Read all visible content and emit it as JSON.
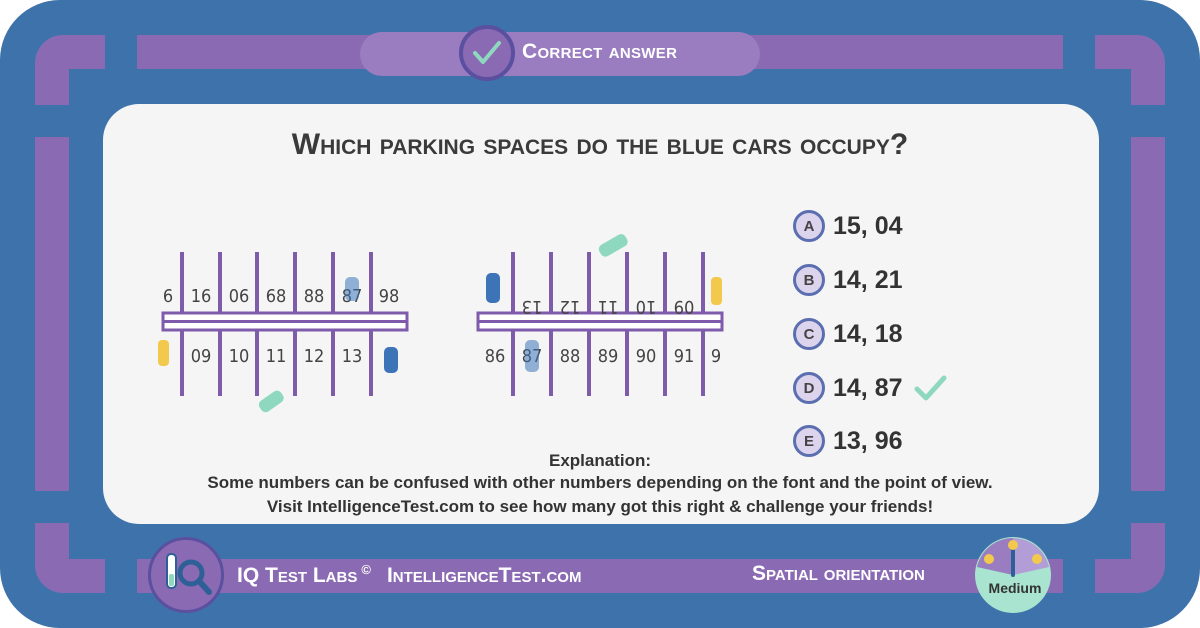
{
  "header": {
    "status_label": "Correct answer",
    "status_icon": "check-icon"
  },
  "question": "Which parking spaces do the blue cars occupy?",
  "puzzle": {
    "lot_1": {
      "top_numbers": [
        "6",
        "16",
        "06",
        "68",
        "88",
        "87",
        "98"
      ],
      "bottom_numbers": [
        "09",
        "10",
        "11",
        "12",
        "13"
      ]
    },
    "lot_2": {
      "top_numbers": [
        "13",
        "12",
        "11",
        "10",
        "09"
      ],
      "bottom_numbers": [
        "86",
        "87",
        "88",
        "89",
        "90",
        "91",
        "9"
      ]
    },
    "colors": {
      "line": "#7e5bab",
      "blue_car": "#3d74b8",
      "yellow_car": "#f2c94c",
      "teal_car": "#8fd8c0"
    }
  },
  "options": [
    {
      "letter": "A",
      "text": "15, 04"
    },
    {
      "letter": "B",
      "text": "14, 21"
    },
    {
      "letter": "C",
      "text": "14, 18"
    },
    {
      "letter": "D",
      "text": "14, 87",
      "correct": true
    },
    {
      "letter": "E",
      "text": "13, 96"
    }
  ],
  "explanation": {
    "title": "Explanation:",
    "line1": "Some numbers can be confused with other numbers depending on the font and the point of view.",
    "line2": "Visit IntelligenceTest.com to see how many got this right & challenge your friends!"
  },
  "footer": {
    "brand": "IQ Test Labs",
    "copyright_symbol": "©",
    "site": "IntelligenceTest.com",
    "category": "Spatial orientation",
    "difficulty": "Medium",
    "logo_icon": "iq-magnifier-icon"
  },
  "colors": {
    "frame": "#3e72aa",
    "purple": "#8a6bb3",
    "check": "#8fd8c0"
  }
}
